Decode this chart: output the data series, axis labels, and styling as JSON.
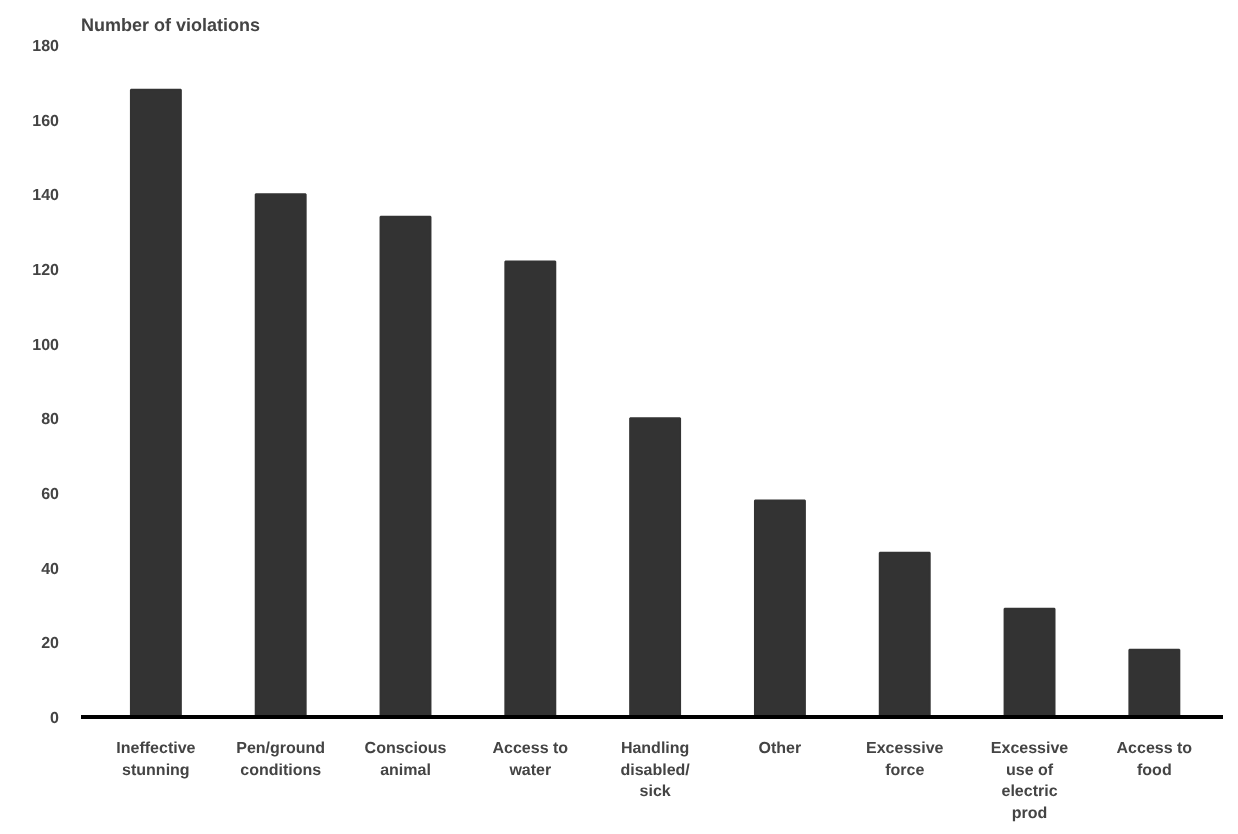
{
  "chart_data": {
    "type": "bar",
    "ylabel": "Number of violations",
    "categories": [
      "Ineffective stunning",
      "Pen/ground conditions",
      "Conscious animal",
      "Access to water",
      "Handling disabled/ sick",
      "Other",
      "Excessive force",
      "Excessive use of electric prod",
      "Access to food"
    ],
    "values": [
      168,
      140,
      134,
      122,
      80,
      58,
      44,
      29,
      18
    ],
    "color": "#333333",
    "ylim": [
      0,
      180
    ],
    "yticks": [
      0,
      20,
      40,
      60,
      80,
      100,
      120,
      140,
      160,
      180
    ],
    "grid": false
  }
}
